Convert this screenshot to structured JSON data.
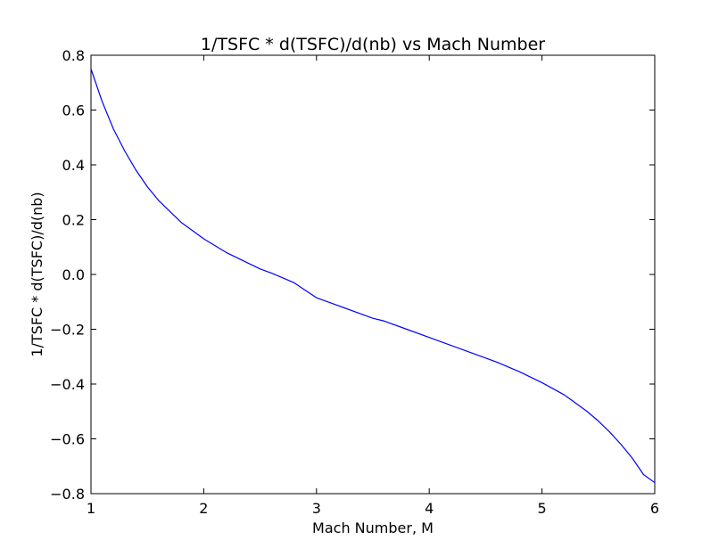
{
  "chart_data": {
    "type": "line",
    "title": "1/TSFC * d(TSFC)/d(nb) vs Mach Number",
    "xlabel": "Mach Number, M",
    "ylabel": "1/TSFC * d(TSFC)/d(nb)",
    "xlim": [
      1,
      6
    ],
    "ylim": [
      -0.8,
      0.8
    ],
    "x_ticks": [
      1,
      2,
      3,
      4,
      5,
      6
    ],
    "x_tick_labels": [
      "1",
      "2",
      "3",
      "4",
      "5",
      "6"
    ],
    "y_ticks": [
      0.8,
      0.6,
      0.4,
      0.2,
      0.0,
      -0.2,
      -0.4,
      -0.6,
      -0.8
    ],
    "y_tick_labels": [
      "0.8",
      "0.6",
      "0.4",
      "0.2",
      "0.0",
      "−0.2",
      "−0.4",
      "−0.6",
      "−0.8"
    ],
    "grid": false,
    "legend": "none",
    "series": [
      {
        "color": "#0000ff",
        "x": [
          1.0,
          1.1,
          1.2,
          1.3,
          1.4,
          1.5,
          1.6,
          1.7,
          1.8,
          2.0,
          2.2,
          2.4,
          2.5,
          2.6,
          2.8,
          3.0,
          3.2,
          3.4,
          3.5,
          3.6,
          3.8,
          4.0,
          4.2,
          4.4,
          4.5,
          4.6,
          4.8,
          5.0,
          5.2,
          5.4,
          5.5,
          5.6,
          5.7,
          5.8,
          5.9,
          6.0
        ],
        "y": [
          0.75,
          0.63,
          0.53,
          0.45,
          0.38,
          0.32,
          0.27,
          0.23,
          0.19,
          0.13,
          0.08,
          0.04,
          0.02,
          0.005,
          -0.03,
          -0.085,
          -0.115,
          -0.145,
          -0.16,
          -0.17,
          -0.2,
          -0.23,
          -0.26,
          -0.29,
          -0.305,
          -0.32,
          -0.355,
          -0.395,
          -0.44,
          -0.5,
          -0.535,
          -0.575,
          -0.62,
          -0.67,
          -0.73,
          -0.76
        ]
      }
    ]
  }
}
